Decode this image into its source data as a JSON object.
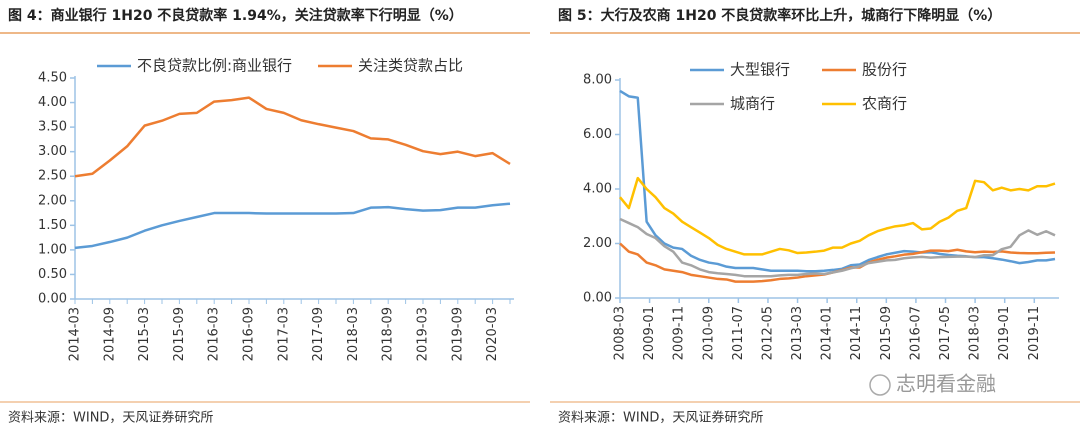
{
  "chart_data": [
    {
      "type": "line",
      "title": "图 4：商业银行 1H20 不良贷款率 1.94%，关注贷款率下行明显（%）",
      "source": "资料来源：WIND，天风证券研究所",
      "categories": [
        "2014-03",
        null,
        "2014-09",
        null,
        "2015-03",
        null,
        "2015-09",
        null,
        "2016-03",
        null,
        "2016-09",
        null,
        "2017-03",
        null,
        "2017-09",
        null,
        "2018-03",
        null,
        "2018-09",
        null,
        "2019-03",
        null,
        "2019-09",
        null,
        "2020-03",
        null
      ],
      "series": [
        {
          "name": "不良贷款比例:商业银行",
          "color": "#5b9bd5",
          "values": [
            1.04,
            1.08,
            1.16,
            1.25,
            1.39,
            1.5,
            1.59,
            1.67,
            1.75,
            1.75,
            1.75,
            1.74,
            1.74,
            1.74,
            1.74,
            1.74,
            1.75,
            1.86,
            1.87,
            1.83,
            1.8,
            1.81,
            1.86,
            1.86,
            1.91,
            1.94
          ]
        },
        {
          "name": "关注类贷款占比",
          "color": "#ed7d31",
          "values": [
            2.5,
            2.55,
            2.82,
            3.11,
            3.53,
            3.63,
            3.77,
            3.79,
            4.02,
            4.05,
            4.1,
            3.87,
            3.79,
            3.64,
            3.56,
            3.49,
            3.42,
            3.27,
            3.25,
            3.14,
            3.01,
            2.95,
            3.0,
            2.91,
            2.97,
            2.75
          ]
        }
      ],
      "ylim": [
        0,
        4.5
      ],
      "yticks": [
        {
          "value": 0,
          "label": "0.00"
        },
        {
          "value": 0.5,
          "label": "0.50"
        },
        {
          "value": 1,
          "label": "1.00"
        },
        {
          "value": 1.5,
          "label": "1.50"
        },
        {
          "value": 2,
          "label": "2.00"
        },
        {
          "value": 2.5,
          "label": "2.50"
        },
        {
          "value": 3,
          "label": "3.00"
        },
        {
          "value": 3.5,
          "label": "3.50"
        },
        {
          "value": 4,
          "label": "4.00"
        },
        {
          "value": 4.5,
          "label": "4.50"
        }
      ],
      "grid": false
    },
    {
      "type": "line",
      "title": "图 5：大行及农商 1H20 不良贷款率环比上升，城商行下降明显（%）",
      "source": "资料来源：WIND，天风证券研究所",
      "x": [
        "2008-03",
        "2008-06",
        "2008-09",
        "2008-12",
        "2009-03",
        "2009-06",
        "2009-09",
        "2009-12",
        "2010-03",
        "2010-06",
        "2010-09",
        "2010-12",
        "2011-03",
        "2011-06",
        "2011-09",
        "2011-12",
        "2012-03",
        "2012-06",
        "2012-09",
        "2012-12",
        "2013-03",
        "2013-06",
        "2013-09",
        "2013-12",
        "2014-03",
        "2014-06",
        "2014-09",
        "2014-12",
        "2015-03",
        "2015-06",
        "2015-09",
        "2015-12",
        "2016-03",
        "2016-06",
        "2016-09",
        "2016-12",
        "2017-03",
        "2017-06",
        "2017-09",
        "2017-12",
        "2018-03",
        "2018-06",
        "2018-09",
        "2018-12",
        "2019-03",
        "2019-06",
        "2019-09",
        "2019-12",
        "2020-03",
        "2020-06"
      ],
      "xlim": [
        "2008-03",
        "2020-06"
      ],
      "xticks": [
        "2008-03",
        "2009-01",
        "2009-11",
        "2010-09",
        "2011-07",
        "2012-05",
        "2013-03",
        "2014-01",
        "2014-11",
        "2015-09",
        "2016-07",
        "2017-05",
        "2018-03",
        "2019-01",
        "2019-11"
      ],
      "series": [
        {
          "name": "大型银行",
          "color": "#5b9bd5",
          "values": [
            7.6,
            7.4,
            7.35,
            2.8,
            2.3,
            2.0,
            1.85,
            1.8,
            1.55,
            1.4,
            1.3,
            1.25,
            1.15,
            1.1,
            1.1,
            1.1,
            1.05,
            1.0,
            1.0,
            1.0,
            1.0,
            0.98,
            0.98,
            1.0,
            1.03,
            1.07,
            1.2,
            1.23,
            1.39,
            1.5,
            1.6,
            1.66,
            1.72,
            1.7,
            1.67,
            1.68,
            1.62,
            1.58,
            1.55,
            1.53,
            1.5,
            1.5,
            1.46,
            1.41,
            1.35,
            1.28,
            1.32,
            1.38,
            1.38,
            1.43
          ]
        },
        {
          "name": "股份行",
          "color": "#ed7d31",
          "values": [
            2.0,
            1.7,
            1.6,
            1.3,
            1.2,
            1.05,
            1.0,
            0.95,
            0.85,
            0.8,
            0.75,
            0.7,
            0.68,
            0.6,
            0.6,
            0.6,
            0.62,
            0.65,
            0.7,
            0.72,
            0.75,
            0.8,
            0.83,
            0.86,
            0.94,
            1.02,
            1.12,
            1.12,
            1.3,
            1.4,
            1.48,
            1.53,
            1.59,
            1.62,
            1.68,
            1.74,
            1.74,
            1.72,
            1.77,
            1.71,
            1.68,
            1.7,
            1.69,
            1.71,
            1.67,
            1.65,
            1.64,
            1.64,
            1.66,
            1.67
          ]
        },
        {
          "name": "城商行",
          "color": "#a5a5a5",
          "values": [
            2.9,
            2.75,
            2.6,
            2.35,
            2.2,
            1.9,
            1.7,
            1.3,
            1.2,
            1.05,
            0.95,
            0.91,
            0.88,
            0.85,
            0.8,
            0.8,
            0.8,
            0.8,
            0.83,
            0.85,
            0.85,
            0.88,
            0.9,
            0.88,
            0.94,
            1.0,
            1.09,
            1.16,
            1.28,
            1.33,
            1.38,
            1.4,
            1.46,
            1.49,
            1.51,
            1.48,
            1.5,
            1.51,
            1.52,
            1.52,
            1.5,
            1.57,
            1.57,
            1.79,
            1.88,
            2.3,
            2.48,
            2.32,
            2.45,
            2.3
          ]
        },
        {
          "name": "农商行",
          "color": "#ffc000",
          "values": [
            3.7,
            3.3,
            4.4,
            4.0,
            3.7,
            3.3,
            3.1,
            2.8,
            2.6,
            2.4,
            2.2,
            1.95,
            1.8,
            1.7,
            1.6,
            1.6,
            1.6,
            1.7,
            1.8,
            1.75,
            1.65,
            1.67,
            1.7,
            1.74,
            1.85,
            1.85,
            2.0,
            2.1,
            2.3,
            2.45,
            2.55,
            2.63,
            2.67,
            2.75,
            2.52,
            2.55,
            2.8,
            2.95,
            3.2,
            3.3,
            4.3,
            4.25,
            3.95,
            4.05,
            3.95,
            4.0,
            3.95,
            4.1,
            4.1,
            4.2
          ]
        }
      ],
      "ylim": [
        0,
        8
      ],
      "yticks": [
        {
          "value": 0,
          "label": "0.00"
        },
        {
          "value": 2,
          "label": "2.00"
        },
        {
          "value": 4,
          "label": "4.00"
        },
        {
          "value": 6,
          "label": "6.00"
        },
        {
          "value": 8,
          "label": "8.00"
        }
      ],
      "grid": false
    }
  ],
  "watermark": "志明看金融"
}
